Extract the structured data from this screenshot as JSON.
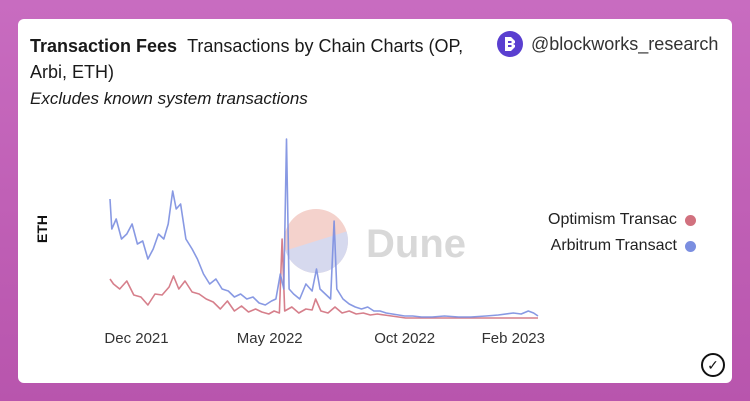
{
  "header": {
    "title": "Transaction Fees",
    "subtitle_inline": "Transactions by Chain Charts (OP, Arbi, ETH)",
    "note": "Excludes known system transactions"
  },
  "brand": {
    "handle": "@blockworks_research",
    "logo_letter": "B",
    "color": "#5a3fd0"
  },
  "watermark": {
    "text": "Dune"
  },
  "colors": {
    "optimism": "#d1717e",
    "arbitrum": "#7b8ee0"
  },
  "chart_data": {
    "type": "line",
    "ylabel": "ETH",
    "x_ticks": [
      "Dec 2021",
      "May 2022",
      "Oct 2022",
      "Feb 2023"
    ],
    "y_range": [
      0,
      180
    ],
    "grid": false,
    "legend_position": "right",
    "series": [
      {
        "name": "Optimism Transac",
        "color": "#d1717e",
        "points": [
          [
            "2021-11-01",
            40
          ],
          [
            "2021-11-05",
            35
          ],
          [
            "2021-11-12",
            30
          ],
          [
            "2021-11-20",
            38
          ],
          [
            "2021-11-28",
            24
          ],
          [
            "2021-12-06",
            22
          ],
          [
            "2021-12-14",
            14
          ],
          [
            "2021-12-22",
            25
          ],
          [
            "2021-12-30",
            24
          ],
          [
            "2022-01-07",
            32
          ],
          [
            "2022-01-12",
            43
          ],
          [
            "2022-01-18",
            30
          ],
          [
            "2022-01-25",
            38
          ],
          [
            "2022-02-02",
            27
          ],
          [
            "2022-02-10",
            25
          ],
          [
            "2022-02-18",
            20
          ],
          [
            "2022-02-26",
            17
          ],
          [
            "2022-03-06",
            10
          ],
          [
            "2022-03-14",
            18
          ],
          [
            "2022-03-22",
            8
          ],
          [
            "2022-03-30",
            13
          ],
          [
            "2022-04-07",
            7
          ],
          [
            "2022-04-15",
            10
          ],
          [
            "2022-04-22",
            7
          ],
          [
            "2022-04-30",
            5
          ],
          [
            "2022-05-06",
            8
          ],
          [
            "2022-05-12",
            6
          ],
          [
            "2022-05-15",
            80
          ],
          [
            "2022-05-18",
            8
          ],
          [
            "2022-05-26",
            12
          ],
          [
            "2022-06-03",
            6
          ],
          [
            "2022-06-11",
            10
          ],
          [
            "2022-06-18",
            9
          ],
          [
            "2022-06-22",
            20
          ],
          [
            "2022-06-28",
            8
          ],
          [
            "2022-07-06",
            6
          ],
          [
            "2022-07-14",
            12
          ],
          [
            "2022-07-22",
            6
          ],
          [
            "2022-07-30",
            8
          ],
          [
            "2022-08-07",
            5
          ],
          [
            "2022-08-15",
            6
          ],
          [
            "2022-08-23",
            4
          ],
          [
            "2022-08-31",
            5
          ],
          [
            "2022-09-08",
            4
          ],
          [
            "2022-09-16",
            3
          ],
          [
            "2022-09-24",
            2
          ],
          [
            "2022-10-02",
            1
          ],
          [
            "2022-10-10",
            1
          ],
          [
            "2022-10-20",
            1
          ],
          [
            "2022-11-01",
            1
          ],
          [
            "2022-11-15",
            1
          ],
          [
            "2022-12-01",
            1
          ],
          [
            "2022-12-15",
            1
          ],
          [
            "2023-01-01",
            1
          ],
          [
            "2023-01-15",
            1
          ],
          [
            "2023-02-01",
            1
          ],
          [
            "2023-02-10",
            1
          ],
          [
            "2023-02-20",
            1
          ],
          [
            "2023-03-01",
            1
          ]
        ]
      },
      {
        "name": "Arbitrum Transact",
        "color": "#7b8ee0",
        "points": [
          [
            "2021-11-01",
            120
          ],
          [
            "2021-11-03",
            90
          ],
          [
            "2021-11-08",
            100
          ],
          [
            "2021-11-14",
            80
          ],
          [
            "2021-11-20",
            85
          ],
          [
            "2021-11-26",
            95
          ],
          [
            "2021-12-02",
            75
          ],
          [
            "2021-12-08",
            78
          ],
          [
            "2021-12-14",
            60
          ],
          [
            "2021-12-20",
            70
          ],
          [
            "2021-12-26",
            85
          ],
          [
            "2022-01-01",
            80
          ],
          [
            "2022-01-06",
            95
          ],
          [
            "2022-01-11",
            128
          ],
          [
            "2022-01-15",
            110
          ],
          [
            "2022-01-20",
            115
          ],
          [
            "2022-01-26",
            80
          ],
          [
            "2022-02-02",
            70
          ],
          [
            "2022-02-08",
            60
          ],
          [
            "2022-02-15",
            45
          ],
          [
            "2022-02-22",
            35
          ],
          [
            "2022-03-01",
            40
          ],
          [
            "2022-03-08",
            30
          ],
          [
            "2022-03-15",
            28
          ],
          [
            "2022-03-22",
            22
          ],
          [
            "2022-03-29",
            25
          ],
          [
            "2022-04-05",
            20
          ],
          [
            "2022-04-12",
            22
          ],
          [
            "2022-04-19",
            16
          ],
          [
            "2022-04-26",
            14
          ],
          [
            "2022-05-03",
            18
          ],
          [
            "2022-05-08",
            20
          ],
          [
            "2022-05-13",
            45
          ],
          [
            "2022-05-17",
            30
          ],
          [
            "2022-05-20",
            180
          ],
          [
            "2022-05-23",
            30
          ],
          [
            "2022-05-28",
            25
          ],
          [
            "2022-06-04",
            20
          ],
          [
            "2022-06-11",
            35
          ],
          [
            "2022-06-18",
            28
          ],
          [
            "2022-06-23",
            50
          ],
          [
            "2022-06-27",
            30
          ],
          [
            "2022-07-03",
            25
          ],
          [
            "2022-07-09",
            20
          ],
          [
            "2022-07-13",
            98
          ],
          [
            "2022-07-16",
            30
          ],
          [
            "2022-07-23",
            20
          ],
          [
            "2022-07-30",
            15
          ],
          [
            "2022-08-06",
            12
          ],
          [
            "2022-08-13",
            10
          ],
          [
            "2022-08-20",
            12
          ],
          [
            "2022-08-27",
            8
          ],
          [
            "2022-09-03",
            8
          ],
          [
            "2022-09-10",
            6
          ],
          [
            "2022-09-17",
            5
          ],
          [
            "2022-09-24",
            4
          ],
          [
            "2022-10-01",
            3
          ],
          [
            "2022-10-10",
            3
          ],
          [
            "2022-10-20",
            2
          ],
          [
            "2022-11-01",
            2
          ],
          [
            "2022-11-15",
            3
          ],
          [
            "2022-12-01",
            2
          ],
          [
            "2022-12-15",
            2
          ],
          [
            "2023-01-01",
            3
          ],
          [
            "2023-01-15",
            4
          ],
          [
            "2023-02-01",
            6
          ],
          [
            "2023-02-10",
            5
          ],
          [
            "2023-02-18",
            8
          ],
          [
            "2023-02-24",
            6
          ],
          [
            "2023-03-01",
            3
          ]
        ]
      }
    ]
  }
}
